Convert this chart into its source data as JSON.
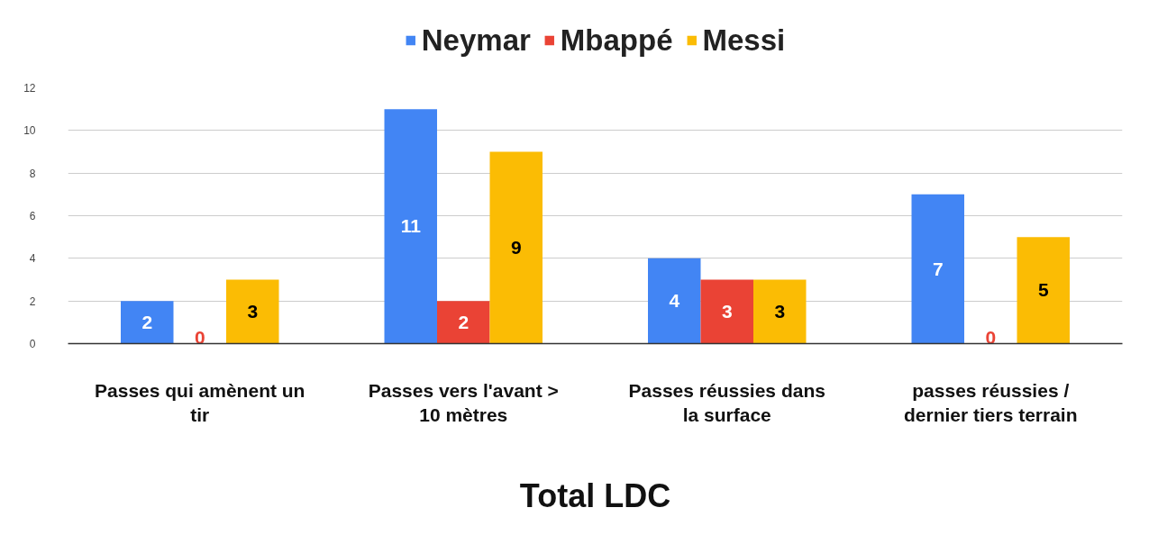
{
  "chart_data": {
    "type": "bar",
    "xlabel": "Total LDC",
    "categories": [
      "Passes qui amènent un tir",
      "Passes vers l'avant > 10 mètres",
      "Passes réussies dans la surface",
      "passes réussies / dernier tiers terrain"
    ],
    "series": [
      {
        "name": "Neymar",
        "color": "#4285f4",
        "values": [
          2,
          11,
          4,
          7
        ]
      },
      {
        "name": "Mbappé",
        "color": "#ea4335",
        "values": [
          0,
          2,
          3,
          0
        ]
      },
      {
        "name": "Messi",
        "color": "#fbbc04",
        "values": [
          3,
          9,
          3,
          5
        ]
      }
    ],
    "ylim": [
      0,
      12
    ],
    "yticks": [
      0,
      2,
      4,
      6,
      8,
      10,
      12
    ],
    "grid": "y",
    "legend": "top",
    "data_labels": true
  }
}
